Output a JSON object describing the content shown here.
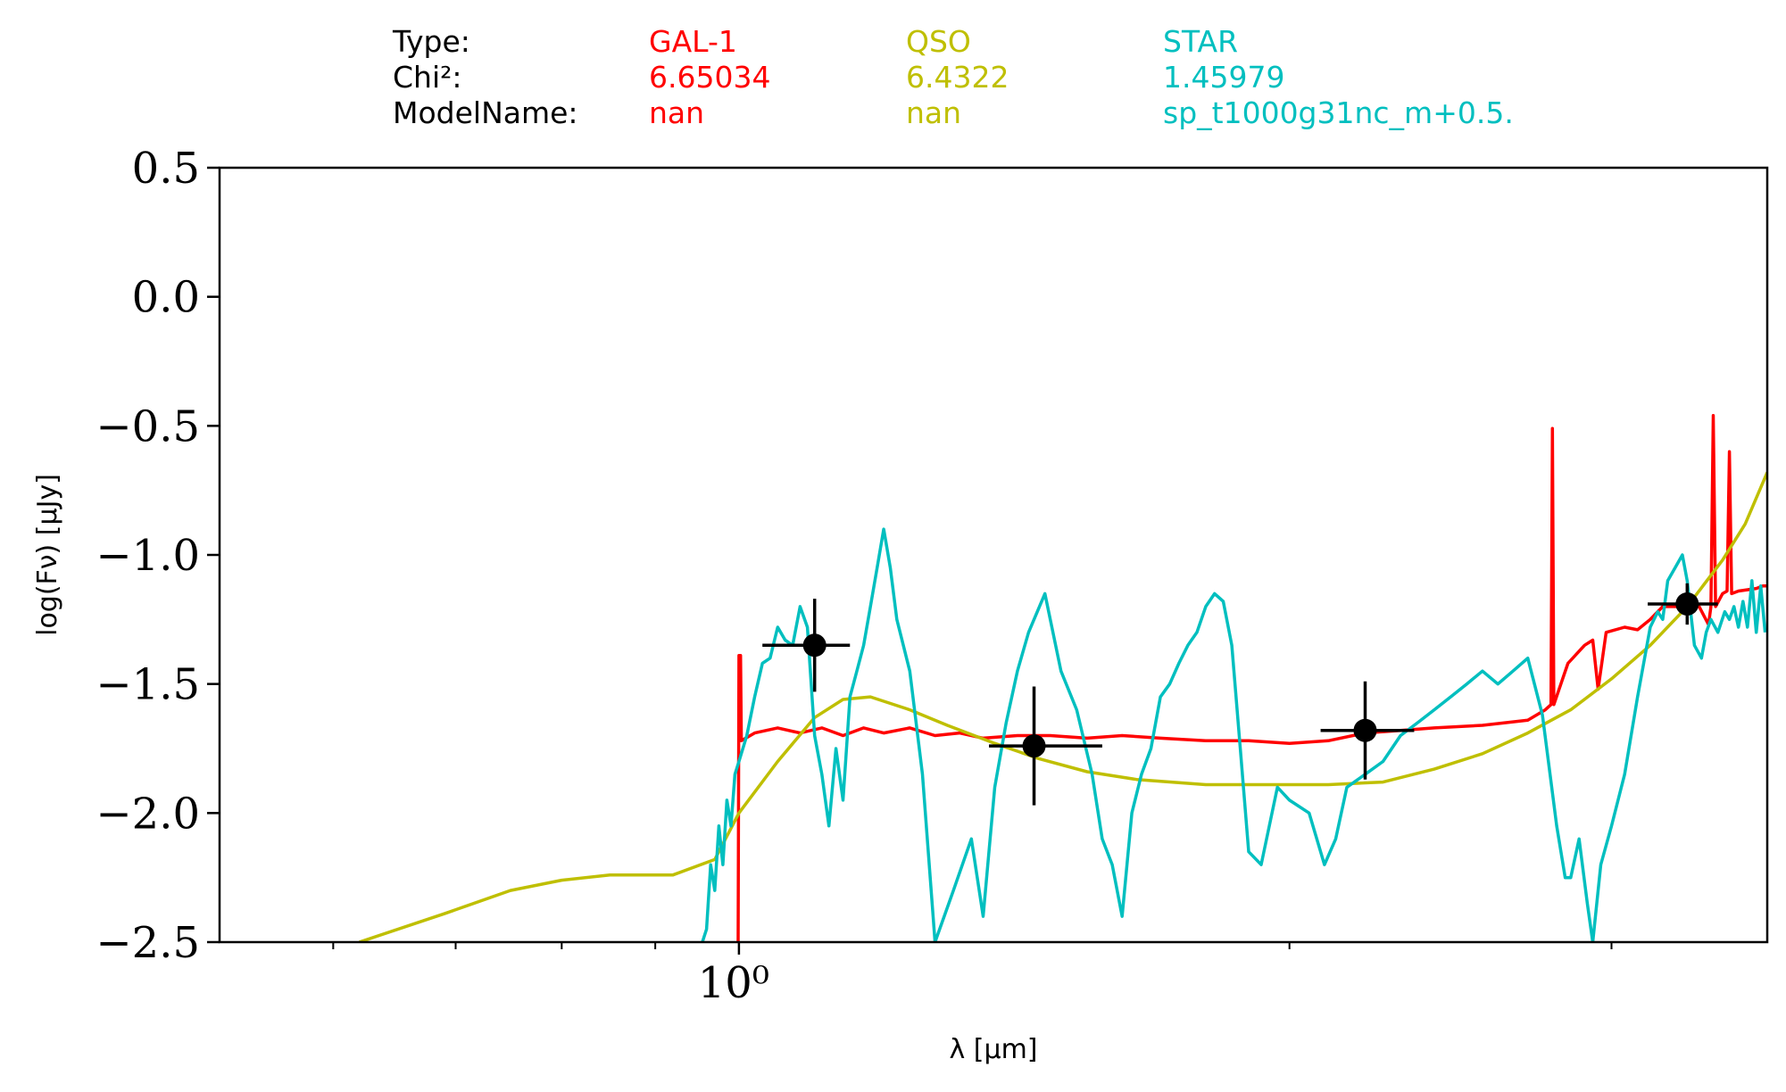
{
  "header": {
    "row_labels": [
      "Type:",
      "Chi²:",
      "ModelName:"
    ],
    "columns": [
      {
        "type": "GAL-1",
        "chi2": "6.65034",
        "model": "nan",
        "color": "#ff0000"
      },
      {
        "type": "QSO",
        "chi2": "6.4322",
        "model": "nan",
        "color": "#bfbf00"
      },
      {
        "type": "STAR",
        "chi2": "1.45979",
        "model": "sp_t1000g31nc_m+0.5.",
        "color": "#00bfbf"
      }
    ]
  },
  "chart_data": {
    "type": "line",
    "xscale": "log",
    "xlabel": "λ [μm]",
    "ylabel": "log(Fν) [μJy]",
    "xlim": [
      0.52,
      3.65
    ],
    "ylim": [
      -2.5,
      0.5
    ],
    "x_tick_labels": [
      {
        "value": 1.0,
        "label": "10⁰"
      }
    ],
    "y_tick_labels": [
      "0.5",
      "0.0",
      "−0.5",
      "−1.0",
      "−1.5",
      "−2.0",
      "−2.5"
    ],
    "y_ticks": [
      0.5,
      0.0,
      -0.5,
      -1.0,
      -1.5,
      -2.0,
      -2.5
    ],
    "series": [
      {
        "name": "GAL-1",
        "color": "#ff0000",
        "points": [
          [
            0.999,
            -2.5
          ],
          [
            1.0,
            -1.39
          ],
          [
            1.002,
            -1.39
          ],
          [
            1.003,
            -1.72
          ],
          [
            1.02,
            -1.69
          ],
          [
            1.05,
            -1.67
          ],
          [
            1.08,
            -1.69
          ],
          [
            1.11,
            -1.67
          ],
          [
            1.14,
            -1.7
          ],
          [
            1.17,
            -1.67
          ],
          [
            1.2,
            -1.69
          ],
          [
            1.24,
            -1.67
          ],
          [
            1.28,
            -1.7
          ],
          [
            1.32,
            -1.69
          ],
          [
            1.36,
            -1.71
          ],
          [
            1.42,
            -1.7
          ],
          [
            1.48,
            -1.7
          ],
          [
            1.55,
            -1.71
          ],
          [
            1.62,
            -1.7
          ],
          [
            1.7,
            -1.71
          ],
          [
            1.8,
            -1.72
          ],
          [
            1.9,
            -1.72
          ],
          [
            2.0,
            -1.73
          ],
          [
            2.1,
            -1.72
          ],
          [
            2.2,
            -1.69
          ],
          [
            2.3,
            -1.68
          ],
          [
            2.4,
            -1.67
          ],
          [
            2.55,
            -1.66
          ],
          [
            2.7,
            -1.64
          ],
          [
            2.76,
            -1.6
          ],
          [
            2.78,
            -1.58
          ],
          [
            2.785,
            -0.51
          ],
          [
            2.79,
            -1.58
          ],
          [
            2.84,
            -1.42
          ],
          [
            2.9,
            -1.35
          ],
          [
            2.93,
            -1.33
          ],
          [
            2.95,
            -1.52
          ],
          [
            2.98,
            -1.3
          ],
          [
            3.05,
            -1.28
          ],
          [
            3.1,
            -1.29
          ],
          [
            3.15,
            -1.25
          ],
          [
            3.2,
            -1.2
          ],
          [
            3.35,
            -1.2
          ],
          [
            3.39,
            -1.27
          ],
          [
            3.4,
            -1.2
          ],
          [
            3.41,
            -0.46
          ],
          [
            3.42,
            -1.2
          ],
          [
            3.45,
            -1.15
          ],
          [
            3.47,
            -1.14
          ],
          [
            3.48,
            -0.6
          ],
          [
            3.49,
            -1.15
          ],
          [
            3.52,
            -1.14
          ],
          [
            3.6,
            -1.13
          ],
          [
            3.63,
            -1.12
          ],
          [
            3.65,
            -1.12
          ]
        ]
      },
      {
        "name": "QSO",
        "color": "#bfbf00",
        "points": [
          [
            0.62,
            -2.5
          ],
          [
            0.69,
            -2.39
          ],
          [
            0.75,
            -2.3
          ],
          [
            0.8,
            -2.26
          ],
          [
            0.85,
            -2.24
          ],
          [
            0.92,
            -2.24
          ],
          [
            0.97,
            -2.18
          ],
          [
            1.0,
            -2.0
          ],
          [
            1.05,
            -1.8
          ],
          [
            1.1,
            -1.63
          ],
          [
            1.14,
            -1.56
          ],
          [
            1.18,
            -1.55
          ],
          [
            1.24,
            -1.6
          ],
          [
            1.3,
            -1.66
          ],
          [
            1.38,
            -1.73
          ],
          [
            1.46,
            -1.79
          ],
          [
            1.55,
            -1.84
          ],
          [
            1.65,
            -1.87
          ],
          [
            1.8,
            -1.89
          ],
          [
            1.95,
            -1.89
          ],
          [
            2.1,
            -1.89
          ],
          [
            2.25,
            -1.88
          ],
          [
            2.4,
            -1.83
          ],
          [
            2.55,
            -1.77
          ],
          [
            2.7,
            -1.69
          ],
          [
            2.85,
            -1.6
          ],
          [
            3.0,
            -1.48
          ],
          [
            3.15,
            -1.35
          ],
          [
            3.3,
            -1.2
          ],
          [
            3.45,
            -1.02
          ],
          [
            3.55,
            -0.88
          ],
          [
            3.65,
            -0.68
          ]
        ]
      },
      {
        "name": "STAR",
        "color": "#00bfbf",
        "points": [
          [
            0.955,
            -2.5
          ],
          [
            0.96,
            -2.45
          ],
          [
            0.965,
            -2.2
          ],
          [
            0.97,
            -2.3
          ],
          [
            0.975,
            -2.05
          ],
          [
            0.98,
            -2.2
          ],
          [
            0.985,
            -1.95
          ],
          [
            0.99,
            -2.05
          ],
          [
            0.995,
            -1.85
          ],
          [
            1.0,
            -1.8
          ],
          [
            1.01,
            -1.7
          ],
          [
            1.02,
            -1.55
          ],
          [
            1.03,
            -1.42
          ],
          [
            1.04,
            -1.4
          ],
          [
            1.05,
            -1.28
          ],
          [
            1.06,
            -1.33
          ],
          [
            1.07,
            -1.35
          ],
          [
            1.08,
            -1.2
          ],
          [
            1.09,
            -1.28
          ],
          [
            1.1,
            -1.7
          ],
          [
            1.11,
            -1.85
          ],
          [
            1.12,
            -2.05
          ],
          [
            1.13,
            -1.75
          ],
          [
            1.14,
            -1.95
          ],
          [
            1.15,
            -1.55
          ],
          [
            1.16,
            -1.45
          ],
          [
            1.17,
            -1.35
          ],
          [
            1.18,
            -1.2
          ],
          [
            1.19,
            -1.05
          ],
          [
            1.2,
            -0.9
          ],
          [
            1.21,
            -1.05
          ],
          [
            1.22,
            -1.25
          ],
          [
            1.24,
            -1.45
          ],
          [
            1.26,
            -1.85
          ],
          [
            1.28,
            -2.5
          ],
          [
            1.31,
            -2.3
          ],
          [
            1.34,
            -2.1
          ],
          [
            1.36,
            -2.4
          ],
          [
            1.38,
            -1.9
          ],
          [
            1.4,
            -1.65
          ],
          [
            1.42,
            -1.45
          ],
          [
            1.44,
            -1.3
          ],
          [
            1.47,
            -1.15
          ],
          [
            1.5,
            -1.45
          ],
          [
            1.53,
            -1.6
          ],
          [
            1.56,
            -1.85
          ],
          [
            1.58,
            -2.1
          ],
          [
            1.6,
            -2.2
          ],
          [
            1.62,
            -2.4
          ],
          [
            1.64,
            -2.0
          ],
          [
            1.66,
            -1.85
          ],
          [
            1.68,
            -1.75
          ],
          [
            1.7,
            -1.55
          ],
          [
            1.72,
            -1.5
          ],
          [
            1.74,
            -1.42
          ],
          [
            1.76,
            -1.35
          ],
          [
            1.78,
            -1.3
          ],
          [
            1.8,
            -1.2
          ],
          [
            1.82,
            -1.15
          ],
          [
            1.84,
            -1.18
          ],
          [
            1.86,
            -1.35
          ],
          [
            1.88,
            -1.75
          ],
          [
            1.9,
            -2.15
          ],
          [
            1.93,
            -2.2
          ],
          [
            1.97,
            -1.9
          ],
          [
            2.0,
            -1.95
          ],
          [
            2.05,
            -2.0
          ],
          [
            2.09,
            -2.2
          ],
          [
            2.12,
            -2.1
          ],
          [
            2.15,
            -1.9
          ],
          [
            2.2,
            -1.85
          ],
          [
            2.25,
            -1.8
          ],
          [
            2.3,
            -1.7
          ],
          [
            2.35,
            -1.65
          ],
          [
            2.4,
            -1.6
          ],
          [
            2.45,
            -1.55
          ],
          [
            2.5,
            -1.5
          ],
          [
            2.55,
            -1.45
          ],
          [
            2.6,
            -1.5
          ],
          [
            2.65,
            -1.45
          ],
          [
            2.7,
            -1.4
          ],
          [
            2.75,
            -1.62
          ],
          [
            2.8,
            -2.05
          ],
          [
            2.83,
            -2.25
          ],
          [
            2.85,
            -2.25
          ],
          [
            2.88,
            -2.1
          ],
          [
            2.91,
            -2.35
          ],
          [
            2.93,
            -2.5
          ],
          [
            2.96,
            -2.2
          ],
          [
            3.0,
            -2.05
          ],
          [
            3.05,
            -1.85
          ],
          [
            3.1,
            -1.55
          ],
          [
            3.15,
            -1.28
          ],
          [
            3.18,
            -1.22
          ],
          [
            3.2,
            -1.25
          ],
          [
            3.22,
            -1.1
          ],
          [
            3.25,
            -1.05
          ],
          [
            3.28,
            -1.0
          ],
          [
            3.3,
            -1.1
          ],
          [
            3.33,
            -1.35
          ],
          [
            3.36,
            -1.4
          ],
          [
            3.38,
            -1.3
          ],
          [
            3.4,
            -1.25
          ],
          [
            3.43,
            -1.3
          ],
          [
            3.46,
            -1.22
          ],
          [
            3.48,
            -1.25
          ],
          [
            3.5,
            -1.2
          ],
          [
            3.52,
            -1.28
          ],
          [
            3.54,
            -1.18
          ],
          [
            3.56,
            -1.28
          ],
          [
            3.58,
            -1.1
          ],
          [
            3.6,
            -1.3
          ],
          [
            3.62,
            -1.12
          ],
          [
            3.64,
            -1.3
          ]
        ]
      }
    ],
    "data_points": [
      {
        "x": 1.1,
        "y": -1.35,
        "xerr_lo": 1.03,
        "xerr_hi": 1.15,
        "yerr": 0.18
      },
      {
        "x": 1.45,
        "y": -1.74,
        "xerr_lo": 1.37,
        "xerr_hi": 1.58,
        "yerr": 0.23
      },
      {
        "x": 2.2,
        "y": -1.68,
        "xerr_lo": 2.08,
        "xerr_hi": 2.34,
        "yerr": 0.19
      },
      {
        "x": 3.3,
        "y": -1.19,
        "xerr_lo": 3.14,
        "xerr_hi": 3.43,
        "yerr": 0.08
      }
    ],
    "grid": false
  }
}
